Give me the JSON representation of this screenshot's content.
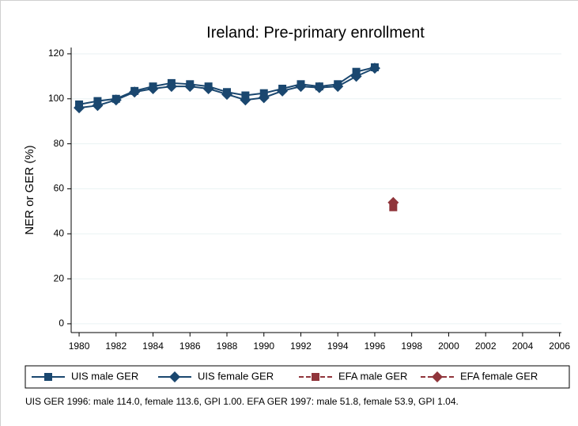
{
  "chart_data": {
    "type": "line",
    "title": "Ireland: Pre-primary enrollment",
    "y_label": "NER or GER (%)",
    "note": "UIS GER 1996: male 114.0, female 113.6, GPI 1.00. EFA GER 1997: male 51.8, female 53.9, GPI 1.04.",
    "x": [
      1980,
      1981,
      1982,
      1983,
      1984,
      1985,
      1986,
      1987,
      1988,
      1989,
      1990,
      1991,
      1992,
      1993,
      1994,
      1995,
      1996,
      1997
    ],
    "series": [
      {
        "name": "UIS male GER",
        "color": "#1a476f",
        "marker": "square",
        "dash": false,
        "values": [
          97.5,
          99,
          100,
          103.5,
          105.5,
          107,
          106.5,
          105.5,
          103,
          101.5,
          102.5,
          104.5,
          106.5,
          105.5,
          106.5,
          112,
          114.0,
          null
        ]
      },
      {
        "name": "UIS female GER",
        "color": "#1a476f",
        "marker": "diamond",
        "dash": false,
        "values": [
          96,
          97,
          99.5,
          103,
          104.5,
          105.5,
          105.5,
          104.5,
          102,
          99.5,
          100.5,
          103.5,
          105.5,
          105,
          105.5,
          110,
          113.6,
          null
        ]
      },
      {
        "name": "EFA male GER",
        "color": "#90353b",
        "marker": "square",
        "dash": true,
        "values": [
          null,
          null,
          null,
          null,
          null,
          null,
          null,
          null,
          null,
          null,
          null,
          null,
          null,
          null,
          null,
          null,
          null,
          51.8
        ]
      },
      {
        "name": "EFA female GER",
        "color": "#90353b",
        "marker": "diamond",
        "dash": true,
        "values": [
          null,
          null,
          null,
          null,
          null,
          null,
          null,
          null,
          null,
          null,
          null,
          null,
          null,
          null,
          null,
          null,
          null,
          53.9
        ]
      }
    ],
    "xlim": [
      1979.57,
      2006.1
    ],
    "xticks": [
      1980,
      1982,
      1984,
      1986,
      1988,
      1990,
      1992,
      1994,
      1996,
      1998,
      2000,
      2002,
      2004,
      2006
    ],
    "ylim": [
      -3.9,
      122.8
    ],
    "yticks": [
      0,
      20,
      40,
      60,
      80,
      100,
      120
    ],
    "grid": true,
    "legend": "bottom"
  }
}
